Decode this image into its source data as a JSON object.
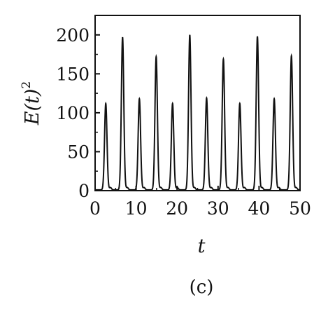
{
  "chart_data": {
    "type": "line",
    "title": "",
    "xlabel": "t",
    "ylabel": "E(t)",
    "ylabel_exponent": "2",
    "panel_label": "(c)",
    "xlim": [
      0,
      50
    ],
    "ylim": [
      0,
      225
    ],
    "xticks": [
      0,
      10,
      20,
      30,
      40,
      50
    ],
    "xtick_labels": [
      "0",
      "10",
      "20",
      "30",
      "40",
      "50"
    ],
    "yticks": [
      0,
      50,
      100,
      150,
      200
    ],
    "ytick_labels": [
      "0",
      "50",
      "100",
      "150",
      "200"
    ],
    "grid": false,
    "legend": "none",
    "series": [
      {
        "line_color": "#111111",
        "baseline": 1,
        "peaks": [
          {
            "t": 2.6,
            "value": 112
          },
          {
            "t": 6.7,
            "value": 197
          },
          {
            "t": 10.8,
            "value": 118
          },
          {
            "t": 14.9,
            "value": 172
          },
          {
            "t": 18.9,
            "value": 112
          },
          {
            "t": 23.1,
            "value": 200
          },
          {
            "t": 27.2,
            "value": 119
          },
          {
            "t": 31.3,
            "value": 169
          },
          {
            "t": 35.3,
            "value": 112
          },
          {
            "t": 39.6,
            "value": 198
          },
          {
            "t": 43.7,
            "value": 118
          },
          {
            "t": 47.9,
            "value": 173
          }
        ]
      }
    ]
  }
}
